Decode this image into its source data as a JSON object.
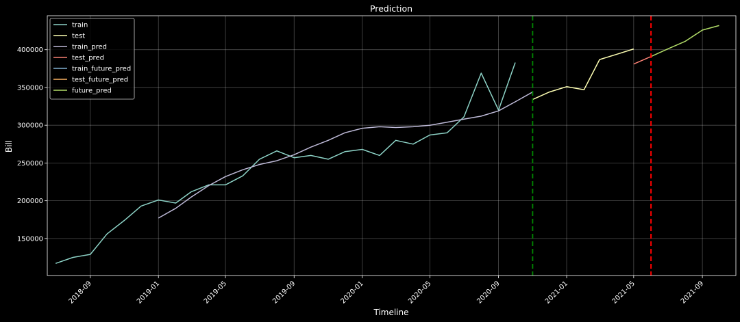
{
  "chart_data": {
    "type": "line",
    "title": "Prediction",
    "xlabel": "Timeline",
    "ylabel": "Bill",
    "xlim": [
      "2018-06-16",
      "2021-10-31"
    ],
    "ylim": [
      101000,
      445000
    ],
    "grid": true,
    "legend_position": "top-left",
    "x_ticks": [
      "2018-09-01",
      "2019-01-01",
      "2019-05-01",
      "2019-09-01",
      "2020-01-01",
      "2020-05-01",
      "2020-09-01",
      "2021-01-01",
      "2021-05-01",
      "2021-09-01"
    ],
    "x_tick_labels": [
      "2018-09",
      "2019-01",
      "2019-05",
      "2019-09",
      "2020-01",
      "2020-05",
      "2020-09",
      "2021-01",
      "2021-05",
      "2021-09"
    ],
    "y_ticks": [
      150000,
      200000,
      250000,
      300000,
      350000,
      400000
    ],
    "y_tick_labels": [
      "150000",
      "200000",
      "250000",
      "300000",
      "350000",
      "400000"
    ],
    "series": [
      {
        "name": "train",
        "color": "#8dd3c7",
        "x": [
          "2018-07-01",
          "2018-08-01",
          "2018-09-01",
          "2018-10-01",
          "2018-11-01",
          "2018-12-01",
          "2019-01-01",
          "2019-02-01",
          "2019-03-01",
          "2019-04-01",
          "2019-05-01",
          "2019-06-01",
          "2019-07-01",
          "2019-08-01",
          "2019-09-01",
          "2019-10-01",
          "2019-11-01",
          "2019-12-01",
          "2020-01-01",
          "2020-02-01",
          "2020-03-01",
          "2020-04-01",
          "2020-05-01",
          "2020-06-01",
          "2020-07-01",
          "2020-08-01",
          "2020-09-01",
          "2020-10-01"
        ],
        "y": [
          117000,
          125000,
          129000,
          156000,
          174000,
          193000,
          201000,
          197000,
          212000,
          221000,
          221000,
          233000,
          255000,
          266000,
          257000,
          260000,
          255000,
          265000,
          268000,
          260000,
          280000,
          275000,
          287000,
          290000,
          311000,
          369000,
          320000,
          383000
        ]
      },
      {
        "name": "test",
        "color": "#feffb3",
        "x": [
          "2020-11-01",
          "2020-12-01",
          "2021-01-01",
          "2021-02-01",
          "2021-03-01",
          "2021-04-01",
          "2021-05-01"
        ],
        "y": [
          334000,
          344000,
          351000,
          347000,
          387000,
          394000,
          401000
        ]
      },
      {
        "name": "train_pred",
        "color": "#bfbbd9",
        "x": [
          "2019-01-01",
          "2019-02-01",
          "2019-03-01",
          "2019-04-01",
          "2019-05-01",
          "2019-06-01",
          "2019-07-01",
          "2019-08-01",
          "2019-09-01",
          "2019-10-01",
          "2019-11-01",
          "2019-12-01",
          "2020-01-01",
          "2020-02-01",
          "2020-03-01",
          "2020-04-01",
          "2020-05-01",
          "2020-06-01",
          "2020-07-01",
          "2020-08-01",
          "2020-09-01",
          "2020-10-01",
          "2020-11-01"
        ],
        "y": [
          177000,
          190000,
          205000,
          220000,
          232000,
          241000,
          248000,
          253000,
          261000,
          271000,
          280000,
          290000,
          296000,
          298000,
          297000,
          298000,
          300000,
          304000,
          308000,
          312000,
          319000,
          331000,
          344000
        ]
      },
      {
        "name": "test_pred",
        "color": "#fa8174",
        "x": [
          "2021-05-01",
          "2021-06-01"
        ],
        "y": [
          381000,
          391000
        ]
      },
      {
        "name": "train_future_pred",
        "color": "#81b1d2",
        "x": [],
        "y": []
      },
      {
        "name": "test_future_pred",
        "color": "#fdb462",
        "x": [],
        "y": []
      },
      {
        "name": "future_pred",
        "color": "#b3de69",
        "x": [
          "2021-06-01",
          "2021-07-01",
          "2021-08-01",
          "2021-09-01",
          "2021-10-01"
        ],
        "y": [
          391000,
          401000,
          411000,
          426000,
          432000
        ]
      }
    ],
    "vertical_lines": [
      {
        "x": "2020-11-01",
        "color": "#008000",
        "style": "dashed"
      },
      {
        "x": "2021-06-01",
        "color": "#ff0000",
        "style": "dashed"
      }
    ]
  }
}
